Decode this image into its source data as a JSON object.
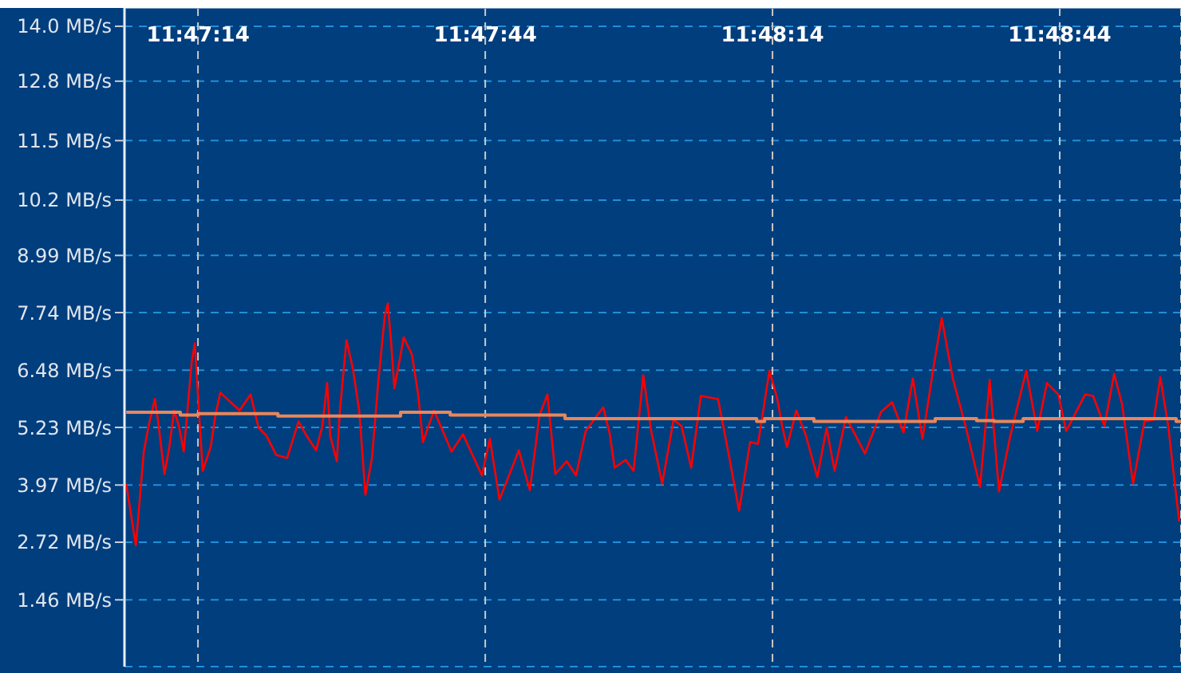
{
  "chart_data": {
    "type": "line",
    "x": [
      11.78514,
      11.78542,
      11.78565,
      11.78579,
      11.78597,
      11.78606,
      11.78625,
      11.78639,
      11.78653,
      11.78667,
      11.78681,
      11.78704,
      11.78713,
      11.78722,
      11.78736,
      11.78759,
      11.78773,
      11.78787,
      11.78843,
      11.78875,
      11.78898,
      11.78921,
      11.78949,
      11.78981,
      11.79014,
      11.79037,
      11.79065,
      11.79083,
      11.79097,
      11.79106,
      11.79125,
      11.79134,
      11.79153,
      11.79171,
      11.7919,
      11.79208,
      11.79227,
      11.79245,
      11.79264,
      11.79273,
      11.79282,
      11.79292,
      11.79306,
      11.79319,
      11.79343,
      11.79361,
      11.79375,
      11.79407,
      11.79458,
      11.79491,
      11.79546,
      11.79569,
      11.79597,
      11.79653,
      11.79685,
      11.79713,
      11.79736,
      11.79759,
      11.79792,
      11.79819,
      11.79847,
      11.79898,
      11.79917,
      11.79931,
      11.79963,
      11.79986,
      11.80014,
      11.80037,
      11.80069,
      11.80102,
      11.80125,
      11.80153,
      11.80181,
      11.80231,
      11.80264,
      11.80292,
      11.80324,
      11.80347,
      11.8038,
      11.80403,
      11.80417,
      11.80431,
      11.80458,
      11.80486,
      11.80519,
      11.80546,
      11.80569,
      11.80602,
      11.80657,
      11.80704,
      11.80736,
      11.80769,
      11.80796,
      11.80824,
      11.80856,
      11.8088,
      11.80912,
      11.80949,
      11.80991,
      11.81019,
      11.81046,
      11.81079,
      11.81125,
      11.81157,
      11.81185,
      11.81218,
      11.81241,
      11.81296,
      11.81319,
      11.81352,
      11.8138,
      11.81403,
      11.81435,
      11.81468,
      11.81495,
      11.81514,
      11.81537,
      11.81556,
      11.81569
    ],
    "series": [
      {
        "color": "#ff0000",
        "values": [
          4.0,
          2.65,
          4.7,
          5.26,
          5.85,
          5.4,
          4.21,
          4.8,
          5.6,
          5.26,
          4.7,
          6.65,
          7.07,
          5.95,
          4.28,
          4.8,
          5.5,
          5.99,
          5.6,
          5.95,
          5.22,
          5.05,
          4.63,
          4.56,
          5.36,
          5.05,
          4.73,
          5.26,
          6.2,
          5.05,
          4.49,
          5.6,
          7.14,
          6.54,
          5.6,
          3.76,
          4.56,
          6.2,
          7.66,
          7.94,
          7.14,
          6.09,
          6.65,
          7.2,
          6.82,
          5.95,
          4.91,
          5.6,
          4.7,
          5.08,
          4.18,
          4.98,
          3.65,
          4.73,
          3.86,
          5.5,
          5.95,
          4.21,
          4.49,
          4.18,
          5.15,
          5.67,
          5.08,
          4.35,
          4.52,
          4.28,
          6.37,
          5.15,
          4.0,
          5.4,
          5.26,
          4.35,
          5.92,
          5.85,
          4.56,
          3.41,
          4.91,
          4.87,
          6.47,
          5.85,
          5.26,
          4.8,
          5.6,
          5.05,
          4.14,
          5.22,
          4.28,
          5.46,
          4.66,
          5.57,
          5.78,
          5.12,
          6.3,
          4.98,
          6.54,
          7.62,
          6.3,
          5.26,
          3.93,
          6.27,
          3.83,
          5.05,
          6.47,
          5.15,
          6.2,
          5.95,
          5.15,
          5.95,
          5.92,
          5.26,
          6.4,
          5.74,
          4.0,
          5.36,
          5.4,
          6.33,
          5.26,
          4.0,
          3.17
        ]
      },
      {
        "type": "step",
        "color": "#e8875a",
        "x": [
          11.78514,
          11.78671,
          11.78722,
          11.78954,
          11.7931,
          11.79454,
          11.79787,
          11.80343,
          11.80366,
          11.80509,
          11.80861,
          11.80981,
          11.81032,
          11.81116,
          11.8156,
          11.81574
        ],
        "values": [
          5.56,
          5.5,
          5.53,
          5.48,
          5.56,
          5.5,
          5.42,
          5.36,
          5.42,
          5.36,
          5.42,
          5.38,
          5.36,
          5.42,
          5.36,
          5.36
        ]
      }
    ],
    "xlim": [
      11.78509,
      11.81574
    ],
    "xticks": [
      {
        "value": 11.787222,
        "label": "11:47:14"
      },
      {
        "value": 11.795556,
        "label": "11:47:44"
      },
      {
        "value": 11.803889,
        "label": "11:48:14"
      },
      {
        "value": 11.812222,
        "label": "11:48:44"
      }
    ],
    "ylim": [
      0,
      14.4
    ],
    "yticks": [
      {
        "value": 1.46,
        "label": "1.46 MB/s"
      },
      {
        "value": 2.72,
        "label": "2.72 MB/s"
      },
      {
        "value": 3.97,
        "label": "3.97 MB/s"
      },
      {
        "value": 5.23,
        "label": "5.23 MB/s"
      },
      {
        "value": 6.48,
        "label": "6.48 MB/s"
      },
      {
        "value": 7.74,
        "label": "7.74 MB/s"
      },
      {
        "value": 8.99,
        "label": "8.99 MB/s"
      },
      {
        "value": 10.2,
        "label": "10.2 MB/s"
      },
      {
        "value": 11.5,
        "label": "11.5 MB/s"
      },
      {
        "value": 12.8,
        "label": "12.8 MB/s"
      },
      {
        "value": 14.0,
        "label": "14.0 MB/s"
      }
    ],
    "grid": true
  }
}
